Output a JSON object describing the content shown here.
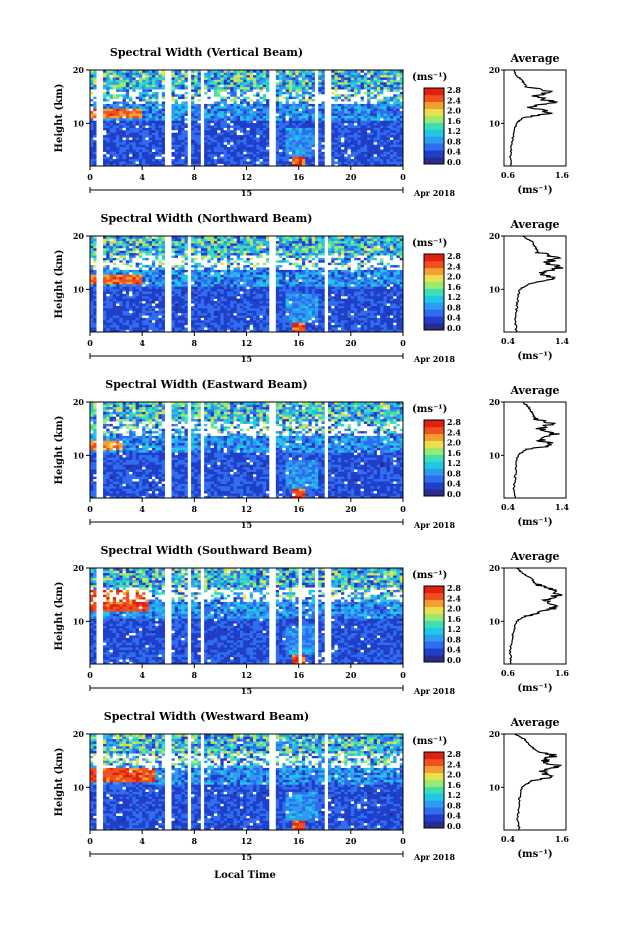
{
  "colors": {
    "colormap": [
      "#2b2b8c",
      "#1f3fc8",
      "#2f6cf0",
      "#2c9cf0",
      "#22c6e6",
      "#3ee0b0",
      "#9ee870",
      "#e8e050",
      "#f4a030",
      "#f05020",
      "#e02010"
    ],
    "gap": "#ffffff"
  },
  "shared": {
    "date_label": "Apr 2018",
    "day_label": "15",
    "units_label": "(ms⁻¹)",
    "avg_xlabel": "(ms⁻¹)",
    "avg_title": "Average",
    "xlabel": "Local Time",
    "ylabel": "Height (km)"
  },
  "chart_data": [
    {
      "type": "heatmap",
      "title": "Spectral Width (Vertical Beam)",
      "xlabel": "Local Time",
      "ylabel": "Height (km)",
      "x_ticks": [
        "0",
        "4",
        "8",
        "12",
        "16",
        "20",
        "0"
      ],
      "xlim": [
        0,
        24
      ],
      "y_ticks": [
        "10",
        "20"
      ],
      "ylim": [
        2,
        20
      ],
      "colorbar": {
        "label": "(ms⁻¹)",
        "ticks": [
          "0.0",
          "0.4",
          "0.8",
          "1.2",
          "1.6",
          "2.0",
          "2.4",
          "2.8"
        ],
        "range": [
          0,
          2.8
        ]
      },
      "data_gaps_hours": [
        [
          0.6,
          1.0
        ],
        [
          5.8,
          6.2
        ],
        [
          7.4,
          7.8
        ],
        [
          8.4,
          8.8
        ],
        [
          13.8,
          14.2
        ],
        [
          17.2,
          17.6
        ],
        [
          18.0,
          18.4
        ]
      ],
      "enhanced_region": {
        "hours": [
          0,
          4
        ],
        "height_km": [
          11,
          13
        ],
        "value": 2.6
      },
      "average_profile": {
        "title": "Average",
        "xlabel": "(ms⁻¹)",
        "xlim": [
          0.6,
          1.6
        ],
        "x_ticks": [
          "0.6",
          "1.6"
        ],
        "ylim": [
          2,
          20
        ],
        "y_ticks": [
          "10",
          "20"
        ],
        "height_km": [
          2,
          4,
          6,
          8,
          10,
          11,
          12,
          13,
          14,
          15,
          16,
          17,
          18,
          19,
          20
        ],
        "values": [
          0.72,
          0.7,
          0.72,
          0.75,
          0.8,
          0.9,
          1.35,
          1.05,
          1.4,
          1.1,
          1.3,
          0.95,
          0.9,
          0.8,
          0.75
        ]
      }
    },
    {
      "type": "heatmap",
      "title": "Spectral Width (Northward Beam)",
      "xlabel": "Local Time",
      "ylabel": "Height (km)",
      "x_ticks": [
        "0",
        "4",
        "8",
        "12",
        "16",
        "20",
        "0"
      ],
      "xlim": [
        0,
        24
      ],
      "y_ticks": [
        "10",
        "20"
      ],
      "ylim": [
        2,
        20
      ],
      "colorbar": {
        "label": "(ms⁻¹)",
        "ticks": [
          "0.0",
          "0.4",
          "0.8",
          "1.2",
          "1.6",
          "2.0",
          "2.4",
          "2.8"
        ],
        "range": [
          0,
          2.8
        ]
      },
      "data_gaps_hours": [
        [
          0.6,
          1.0
        ],
        [
          5.8,
          6.2
        ],
        [
          7.4,
          7.8
        ],
        [
          13.8,
          14.2
        ],
        [
          17.9,
          18.3
        ]
      ],
      "enhanced_region": {
        "hours": [
          0,
          4
        ],
        "height_km": [
          11,
          13
        ],
        "value": 2.6
      },
      "average_profile": {
        "title": "Average",
        "xlabel": "(ms⁻¹)",
        "xlim": [
          0.4,
          1.4
        ],
        "x_ticks": [
          "0.4",
          "1.4"
        ],
        "ylim": [
          2,
          20
        ],
        "y_ticks": [
          "10",
          "20"
        ],
        "height_km": [
          2,
          4,
          6,
          8,
          10,
          11,
          12,
          13,
          14,
          15,
          16,
          17,
          18,
          19,
          20
        ],
        "values": [
          0.6,
          0.58,
          0.6,
          0.62,
          0.65,
          0.8,
          1.25,
          1.0,
          1.3,
          1.1,
          1.25,
          0.95,
          0.9,
          0.85,
          0.7
        ]
      }
    },
    {
      "type": "heatmap",
      "title": "Spectral Width (Eastward Beam)",
      "xlabel": "Local Time",
      "ylabel": "Height (km)",
      "x_ticks": [
        "0",
        "4",
        "8",
        "12",
        "16",
        "20",
        "0"
      ],
      "xlim": [
        0,
        24
      ],
      "y_ticks": [
        "10",
        "20"
      ],
      "ylim": [
        2,
        20
      ],
      "colorbar": {
        "label": "(ms⁻¹)",
        "ticks": [
          "0.0",
          "0.4",
          "0.8",
          "1.2",
          "1.6",
          "2.0",
          "2.4",
          "2.8"
        ],
        "range": [
          0,
          2.8
        ]
      },
      "data_gaps_hours": [
        [
          0.6,
          1.0
        ],
        [
          5.8,
          6.2
        ],
        [
          7.4,
          7.8
        ],
        [
          8.4,
          8.8
        ],
        [
          13.8,
          14.2
        ],
        [
          17.9,
          18.3
        ]
      ],
      "enhanced_region": {
        "hours": [
          0,
          2.5
        ],
        "height_km": [
          11,
          13
        ],
        "value": 2.4
      },
      "average_profile": {
        "title": "Average",
        "xlabel": "(ms⁻¹)",
        "xlim": [
          0.4,
          1.4
        ],
        "x_ticks": [
          "0.4",
          "1.4"
        ],
        "ylim": [
          2,
          20
        ],
        "y_ticks": [
          "10",
          "20"
        ],
        "height_km": [
          2,
          4,
          6,
          8,
          10,
          11,
          12,
          13,
          14,
          15,
          16,
          17,
          18,
          19,
          20
        ],
        "values": [
          0.58,
          0.56,
          0.58,
          0.6,
          0.62,
          0.75,
          1.2,
          0.95,
          1.25,
          1.0,
          1.15,
          0.9,
          0.85,
          0.8,
          0.7
        ]
      }
    },
    {
      "type": "heatmap",
      "title": "Spectral Width (Southward Beam)",
      "xlabel": "Local Time",
      "ylabel": "Height (km)",
      "x_ticks": [
        "0",
        "4",
        "8",
        "12",
        "16",
        "20",
        "0"
      ],
      "xlim": [
        0,
        24
      ],
      "y_ticks": [
        "10",
        "20"
      ],
      "ylim": [
        2,
        20
      ],
      "colorbar": {
        "label": "(ms⁻¹)",
        "ticks": [
          "0.0",
          "0.4",
          "0.8",
          "1.2",
          "1.6",
          "2.0",
          "2.4",
          "2.8"
        ],
        "range": [
          0,
          2.8
        ]
      },
      "data_gaps_hours": [
        [
          0.6,
          1.0
        ],
        [
          5.8,
          6.2
        ],
        [
          7.4,
          7.8
        ],
        [
          8.4,
          8.8
        ],
        [
          13.8,
          14.2
        ],
        [
          16.0,
          16.3
        ],
        [
          17.2,
          17.6
        ],
        [
          18.0,
          18.4
        ]
      ],
      "enhanced_region": {
        "hours": [
          0,
          4.5
        ],
        "height_km": [
          12,
          16
        ],
        "value": 2.7
      },
      "average_profile": {
        "title": "Average",
        "xlabel": "(ms⁻¹)",
        "xlim": [
          0.6,
          1.6
        ],
        "x_ticks": [
          "0.6",
          "1.6"
        ],
        "ylim": [
          2,
          20
        ],
        "y_ticks": [
          "10",
          "20"
        ],
        "height_km": [
          2,
          4,
          6,
          8,
          10,
          11,
          12,
          13,
          14,
          15,
          16,
          17,
          18,
          19,
          20
        ],
        "values": [
          0.72,
          0.7,
          0.72,
          0.75,
          0.8,
          0.95,
          1.3,
          1.45,
          1.25,
          1.5,
          1.35,
          1.1,
          1.05,
          0.9,
          0.8
        ]
      }
    },
    {
      "type": "heatmap",
      "title": "Spectral Width (Westward Beam)",
      "xlabel": "Local Time",
      "ylabel": "Height (km)",
      "x_ticks": [
        "0",
        "4",
        "8",
        "12",
        "16",
        "20",
        "0"
      ],
      "xlim": [
        0,
        24
      ],
      "y_ticks": [
        "10",
        "20"
      ],
      "ylim": [
        2,
        20
      ],
      "colorbar": {
        "label": "(ms⁻¹)",
        "ticks": [
          "0.0",
          "0.4",
          "0.8",
          "1.2",
          "1.6",
          "2.0",
          "2.4",
          "2.8"
        ],
        "range": [
          0,
          2.8
        ]
      },
      "data_gaps_hours": [
        [
          0.6,
          1.0
        ],
        [
          5.8,
          6.2
        ],
        [
          7.4,
          7.8
        ],
        [
          8.4,
          8.8
        ],
        [
          13.8,
          14.2
        ],
        [
          17.9,
          18.3
        ]
      ],
      "enhanced_region": {
        "hours": [
          0,
          5
        ],
        "height_km": [
          11,
          13.5
        ],
        "value": 2.7
      },
      "average_profile": {
        "title": "Average",
        "xlabel": "(ms⁻¹)",
        "xlim": [
          0.4,
          1.6
        ],
        "x_ticks": [
          "0.4",
          "1.6"
        ],
        "ylim": [
          2,
          20
        ],
        "y_ticks": [
          "10",
          "20"
        ],
        "height_km": [
          2,
          4,
          6,
          8,
          10,
          11,
          12,
          13,
          14,
          15,
          16,
          17,
          18,
          19,
          20
        ],
        "values": [
          0.7,
          0.66,
          0.68,
          0.7,
          0.75,
          0.9,
          1.3,
          1.1,
          1.45,
          1.15,
          1.4,
          1.0,
          0.9,
          0.8,
          0.6
        ]
      }
    }
  ]
}
